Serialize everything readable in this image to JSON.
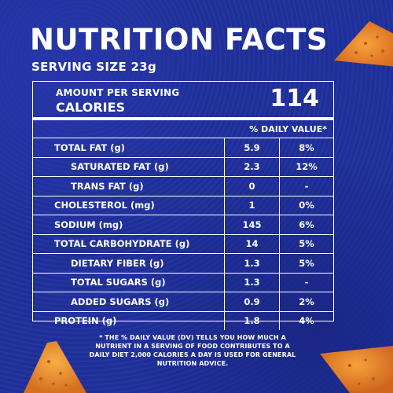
{
  "title": "NUTRITION FACTS",
  "serving_size": "SERVING SIZE 23g",
  "amount_per_serving": "AMOUNT PER SERVING",
  "calories_label": "CALORIES",
  "calories_value": "114",
  "daily_value_header": "% DAILY VALUE*",
  "nutrients": [
    {
      "name": "TOTAL FAT (g)",
      "amount": "5.9",
      "dv": "8%",
      "indent": false
    },
    {
      "name": "SATURATED FAT (g)",
      "amount": "2.3",
      "dv": "12%",
      "indent": true
    },
    {
      "name": "TRANS FAT (g)",
      "amount": "0",
      "dv": "-",
      "indent": true
    },
    {
      "name": "CHOLESTEROL (mg)",
      "amount": "1",
      "dv": "0%",
      "indent": false
    },
    {
      "name": "SODIUM (mg)",
      "amount": "145",
      "dv": "6%",
      "indent": false
    },
    {
      "name": "TOTAL CARBOHYDRATE (g)",
      "amount": "14",
      "dv": "5%",
      "indent": false
    },
    {
      "name": "DIETARY FIBER (g)",
      "amount": "1.3",
      "dv": "5%",
      "indent": true
    },
    {
      "name": "TOTAL SUGARS (g)",
      "amount": "1.3",
      "dv": "-",
      "indent": true
    },
    {
      "name": "ADDED SUGARS (g)",
      "amount": "0.9",
      "dv": "2%",
      "indent": true
    },
    {
      "name": "PROTEIN (g)",
      "amount": "1.8",
      "dv": "4%",
      "indent": false
    }
  ],
  "footnote": "* THE % DAILY VALUE (DV) TELLS YOU HOW MUCH A NUTRIENT IN A SERVING OF FOOD CONTRIBUTES TO A DAILY DIET 2,000 CALORIES A DAY IS USED FOR GENERAL NUTRITION ADVICE.",
  "colors": {
    "background": "#1f2f9a",
    "text": "#ffffff",
    "chip": "#e8872a"
  },
  "decorations": [
    "tortilla-chip-top-right",
    "tortilla-chip-bottom-left",
    "tortilla-chip-bottom-right"
  ]
}
